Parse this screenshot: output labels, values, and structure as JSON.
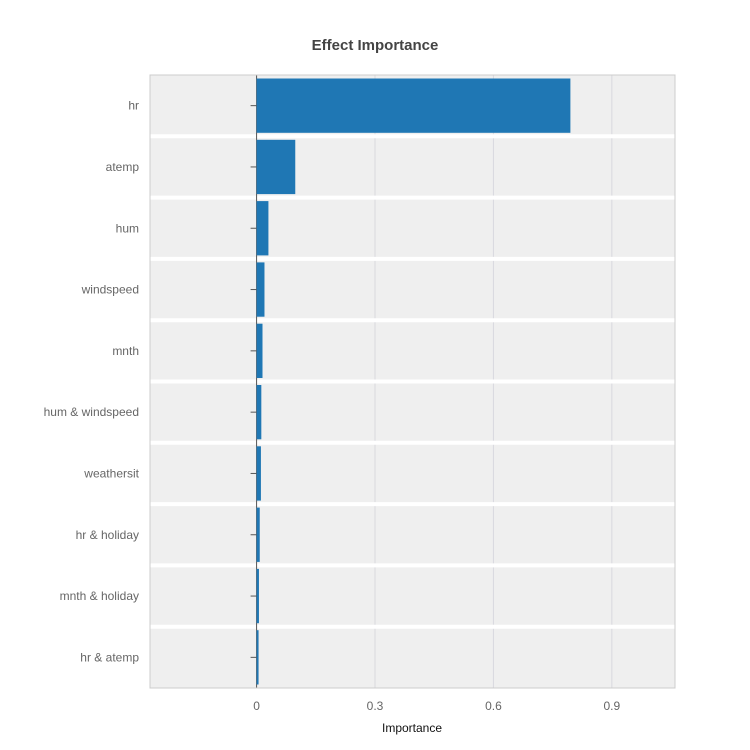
{
  "chart_data": {
    "type": "bar",
    "orientation": "horizontal",
    "title": "Effect Importance",
    "xlabel": "Importance",
    "ylabel": "",
    "categories": [
      "hr",
      "atemp",
      "hum",
      "windspeed",
      "mnth",
      "hum & windspeed",
      "weathersit",
      "hr & holiday",
      "mnth & holiday",
      "hr & atemp"
    ],
    "values": [
      0.795,
      0.098,
      0.03,
      0.02,
      0.015,
      0.012,
      0.011,
      0.008,
      0.006,
      0.005
    ],
    "xlim": [
      -0.27,
      1.06
    ],
    "xticks": [
      0,
      0.3,
      0.6,
      0.9
    ],
    "xtick_labels": [
      "0",
      "0.3",
      "0.6",
      "0.9"
    ],
    "grid": true,
    "legend": "none",
    "colors": {
      "bar": "#1f77b4",
      "plot_background": "#efefef",
      "band_separator": "#ffffff",
      "grid": "#d8d8de",
      "frame": "#cccccc"
    }
  }
}
